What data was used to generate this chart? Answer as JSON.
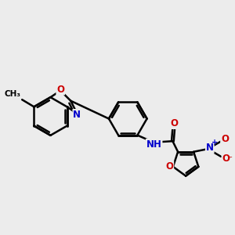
{
  "background_color": "#ececec",
  "bond_color": "#000000",
  "bond_width": 1.8,
  "atom_colors": {
    "C": "#000000",
    "N": "#0000cc",
    "O": "#cc0000",
    "H": "#4a9999"
  }
}
